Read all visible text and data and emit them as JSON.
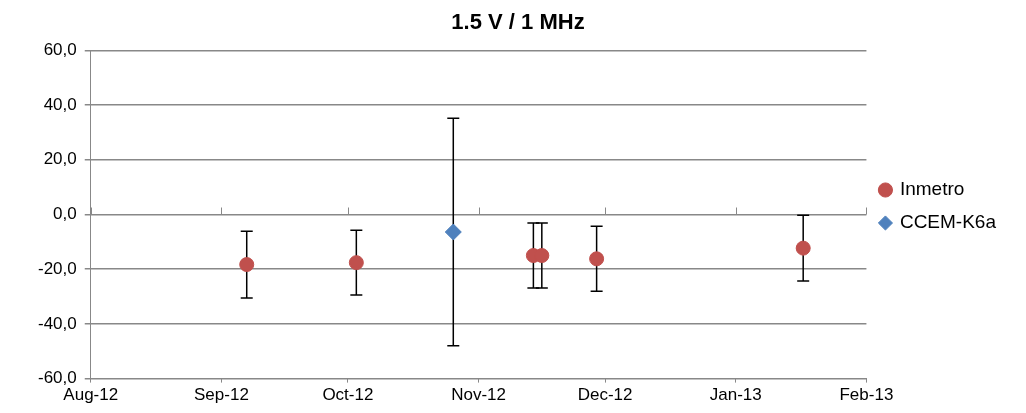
{
  "chart_data": {
    "type": "scatter",
    "title": "1.5 V / 1 MHz",
    "xlim": [
      "2012-08",
      "2013-02"
    ],
    "xticks": [
      {
        "value": "2012-08",
        "label": "Aug-12"
      },
      {
        "value": "2012-09",
        "label": "Sep-12"
      },
      {
        "value": "2012-10",
        "label": "Oct-12"
      },
      {
        "value": "2012-11",
        "label": "Nov-12"
      },
      {
        "value": "2012-12",
        "label": "Dec-12"
      },
      {
        "value": "2013-01",
        "label": "Jan-13"
      },
      {
        "value": "2013-02",
        "label": "Feb-13"
      }
    ],
    "ylim": [
      -60,
      60
    ],
    "yticks": [
      {
        "value": 60,
        "label": "60,0"
      },
      {
        "value": 40,
        "label": "40,0"
      },
      {
        "value": 20,
        "label": "20,0"
      },
      {
        "value": 0,
        "label": "0,0"
      },
      {
        "value": -20,
        "label": "-20,0"
      },
      {
        "value": -40,
        "label": "-40,0"
      },
      {
        "value": -60,
        "label": "-60,0"
      }
    ],
    "grid": "y",
    "legend": "right",
    "series": [
      {
        "name": "Inmetro",
        "color": "#c0504d",
        "marker": "circle",
        "x": [
          "2012-09-07",
          "2012-10-03",
          "2012-11-14",
          "2012-11-16",
          "2012-11-29",
          "2013-01-17"
        ],
        "values": [
          -18.3,
          -17.6,
          -15.0,
          -15.0,
          -16.2,
          -12.3
        ],
        "errors": [
          12.2,
          11.8,
          11.9,
          11.9,
          11.9,
          12.0
        ]
      },
      {
        "name": "CCEM-K6a",
        "color": "#4f81bd",
        "marker": "diamond",
        "x": [
          "2012-10-26"
        ],
        "values": [
          -6.4
        ],
        "errors": [
          41.6
        ]
      }
    ]
  }
}
